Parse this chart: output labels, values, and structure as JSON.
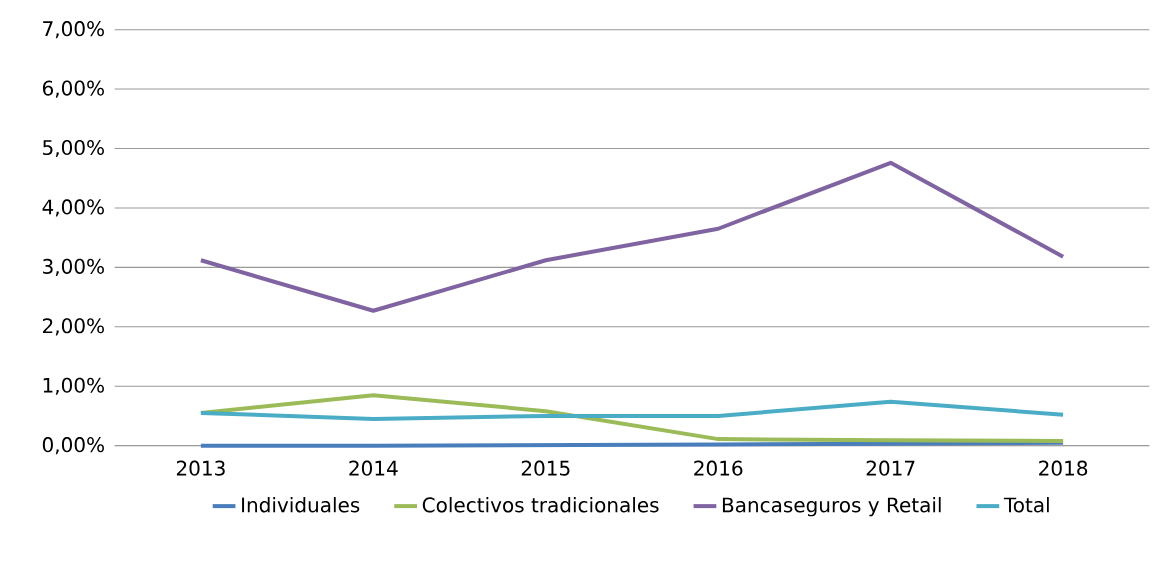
{
  "chart_data": {
    "type": "line",
    "categories": [
      "2013",
      "2014",
      "2015",
      "2016",
      "2017",
      "2018"
    ],
    "series": [
      {
        "name": "Individuales",
        "color": "#4a7ebb",
        "values": [
          0.0,
          0.0,
          0.01,
          0.02,
          0.03,
          0.05
        ]
      },
      {
        "name": "Colectivos tradicionales",
        "color": "#9bbb59",
        "values": [
          0.55,
          0.85,
          0.58,
          0.11,
          0.09,
          0.08
        ]
      },
      {
        "name": "Bancaseguros y Retail",
        "color": "#8064a2",
        "values": [
          3.12,
          2.27,
          3.12,
          3.65,
          4.76,
          3.18
        ]
      },
      {
        "name": "Total",
        "color": "#4bacc6",
        "values": [
          0.55,
          0.45,
          0.5,
          0.5,
          0.74,
          0.52
        ]
      }
    ],
    "ylim": [
      0,
      7
    ],
    "yticks": [
      {
        "value": 0,
        "label": "0,00%"
      },
      {
        "value": 1,
        "label": "1,00%"
      },
      {
        "value": 2,
        "label": "2,00%"
      },
      {
        "value": 3,
        "label": "3,00%"
      },
      {
        "value": 4,
        "label": "4,00%"
      },
      {
        "value": 5,
        "label": "5,00%"
      },
      {
        "value": 6,
        "label": "6,00%"
      },
      {
        "value": 7,
        "label": "7,00%"
      }
    ],
    "grid": "y",
    "legend": "bottom",
    "marker": "none",
    "line_style": "solid"
  }
}
